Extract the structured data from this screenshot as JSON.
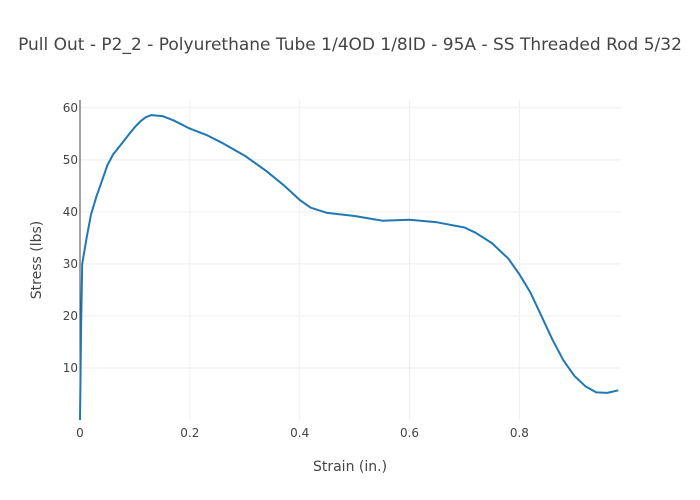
{
  "chart_data": {
    "type": "line",
    "title": "Pull Out - P2_2 - Polyurethane Tube 1/4OD 1/8ID - 95A - SS Threaded Rod 5/32",
    "xlabel": "Strain (in.)",
    "ylabel": "Stress (lbs)",
    "xlim": [
      0,
      0.985
    ],
    "ylim": [
      0,
      61.5
    ],
    "xticks": [
      0,
      0.2,
      0.4,
      0.6,
      0.8
    ],
    "xtick_labels": [
      "0",
      "0.2",
      "0.4",
      "0.6",
      "0.8"
    ],
    "yticks": [
      10,
      20,
      30,
      40,
      50,
      60
    ],
    "ytick_labels": [
      "10",
      "20",
      "30",
      "40",
      "50",
      "60"
    ],
    "grid": true,
    "legend": "none",
    "line_color": "#1f77b4",
    "series": [
      {
        "x": [
          0,
          0.002,
          0.004,
          0.008,
          0.012,
          0.02,
          0.03,
          0.04,
          0.05,
          0.06,
          0.075,
          0.09,
          0.1,
          0.11,
          0.12,
          0.13,
          0.14,
          0.15,
          0.17,
          0.2,
          0.23,
          0.26,
          0.3,
          0.34,
          0.37,
          0.4,
          0.42,
          0.45,
          0.5,
          0.55,
          0.6,
          0.65,
          0.7,
          0.72,
          0.75,
          0.78,
          0.8,
          0.82,
          0.84,
          0.86,
          0.88,
          0.9,
          0.92,
          0.94,
          0.96,
          0.98
        ],
        "y": [
          0,
          18,
          30,
          32.5,
          35,
          39.5,
          43,
          46,
          49,
          51,
          53,
          55,
          56.3,
          57.4,
          58.2,
          58.6,
          58.5,
          58.4,
          57.6,
          56,
          54.8,
          53.2,
          50.8,
          47.8,
          45.2,
          42.3,
          40.8,
          39.8,
          39.2,
          38.3,
          38.5,
          38,
          37,
          36,
          34,
          31,
          28,
          24.5,
          20,
          15.5,
          11.5,
          8.5,
          6.5,
          5.3,
          5.2,
          5.7
        ]
      }
    ]
  }
}
